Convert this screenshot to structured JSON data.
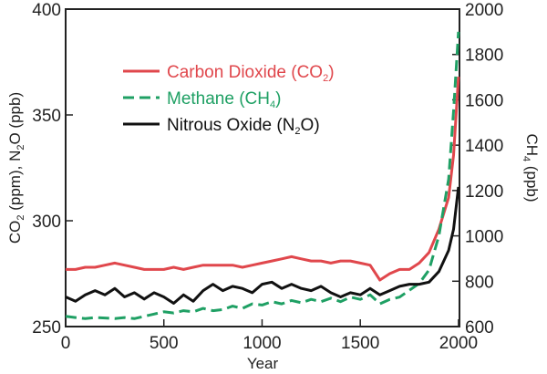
{
  "chart_data": {
    "type": "line",
    "title": "",
    "xlabel": "Year",
    "ylabel_left": {
      "prefix": "CO",
      "sub1": "2",
      "middle": " (ppm), N",
      "sub2": "2",
      "suffix": "O (ppb)"
    },
    "ylabel_right": {
      "prefix": "CH",
      "sub1": "4",
      "suffix": " (ppb)"
    },
    "xlim": [
      0,
      2005
    ],
    "ylim_left": [
      250,
      400
    ],
    "ylim_right": [
      600,
      2000
    ],
    "x_ticks": [
      0,
      500,
      1000,
      1500,
      2000
    ],
    "y_ticks_left": [
      250,
      300,
      350,
      400
    ],
    "y_ticks_right": [
      600,
      800,
      1000,
      1200,
      1400,
      1600,
      1800,
      2000
    ],
    "grid": false,
    "legend_placement": "top-left",
    "series": [
      {
        "key": "co2",
        "name_main": "Carbon Dioxide (CO",
        "name_sub": "2",
        "name_end": ")",
        "axis": "left",
        "color": "#e0474c",
        "dash": "solid",
        "points": [
          [
            0,
            277
          ],
          [
            50,
            277
          ],
          [
            100,
            278
          ],
          [
            150,
            278
          ],
          [
            200,
            279
          ],
          [
            250,
            280
          ],
          [
            300,
            279
          ],
          [
            350,
            278
          ],
          [
            400,
            277
          ],
          [
            450,
            277
          ],
          [
            500,
            277
          ],
          [
            550,
            278
          ],
          [
            600,
            277
          ],
          [
            650,
            278
          ],
          [
            700,
            279
          ],
          [
            750,
            279
          ],
          [
            800,
            279
          ],
          [
            850,
            279
          ],
          [
            900,
            278
          ],
          [
            950,
            279
          ],
          [
            1000,
            280
          ],
          [
            1050,
            281
          ],
          [
            1100,
            282
          ],
          [
            1150,
            283
          ],
          [
            1200,
            282
          ],
          [
            1250,
            281
          ],
          [
            1300,
            281
          ],
          [
            1350,
            280
          ],
          [
            1400,
            281
          ],
          [
            1450,
            281
          ],
          [
            1500,
            280
          ],
          [
            1550,
            279
          ],
          [
            1600,
            272
          ],
          [
            1650,
            275
          ],
          [
            1700,
            277
          ],
          [
            1750,
            277
          ],
          [
            1800,
            280
          ],
          [
            1850,
            285
          ],
          [
            1900,
            296
          ],
          [
            1950,
            311
          ],
          [
            1975,
            331
          ],
          [
            2000,
            368
          ]
        ]
      },
      {
        "key": "ch4",
        "name_main": "Methane (CH",
        "name_sub": "4",
        "name_end": ")",
        "axis": "right",
        "color": "#1fa064",
        "dash": "dashed",
        "points": [
          [
            0,
            645
          ],
          [
            50,
            640
          ],
          [
            100,
            635
          ],
          [
            150,
            640
          ],
          [
            200,
            638
          ],
          [
            250,
            635
          ],
          [
            300,
            640
          ],
          [
            350,
            635
          ],
          [
            400,
            645
          ],
          [
            450,
            655
          ],
          [
            500,
            665
          ],
          [
            550,
            660
          ],
          [
            600,
            670
          ],
          [
            650,
            665
          ],
          [
            700,
            680
          ],
          [
            750,
            670
          ],
          [
            800,
            675
          ],
          [
            850,
            690
          ],
          [
            900,
            680
          ],
          [
            950,
            700
          ],
          [
            1000,
            695
          ],
          [
            1050,
            710
          ],
          [
            1100,
            700
          ],
          [
            1150,
            715
          ],
          [
            1200,
            705
          ],
          [
            1250,
            720
          ],
          [
            1300,
            710
          ],
          [
            1350,
            725
          ],
          [
            1400,
            710
          ],
          [
            1450,
            730
          ],
          [
            1500,
            720
          ],
          [
            1550,
            740
          ],
          [
            1600,
            700
          ],
          [
            1650,
            720
          ],
          [
            1700,
            730
          ],
          [
            1750,
            760
          ],
          [
            1800,
            790
          ],
          [
            1850,
            850
          ],
          [
            1900,
            1000
          ],
          [
            1950,
            1250
          ],
          [
            1975,
            1550
          ],
          [
            2000,
            1900
          ]
        ]
      },
      {
        "key": "n2o",
        "name_main": "Nitrous Oxide (N",
        "name_sub": "2",
        "name_end": "O)",
        "axis": "left",
        "color": "#111111",
        "dash": "solid",
        "points": [
          [
            0,
            264
          ],
          [
            50,
            262
          ],
          [
            100,
            265
          ],
          [
            150,
            267
          ],
          [
            200,
            265
          ],
          [
            250,
            268
          ],
          [
            300,
            264
          ],
          [
            350,
            266
          ],
          [
            400,
            263
          ],
          [
            450,
            266
          ],
          [
            500,
            264
          ],
          [
            550,
            261
          ],
          [
            600,
            265
          ],
          [
            650,
            262
          ],
          [
            700,
            267
          ],
          [
            750,
            270
          ],
          [
            800,
            267
          ],
          [
            850,
            269
          ],
          [
            900,
            268
          ],
          [
            950,
            266
          ],
          [
            1000,
            270
          ],
          [
            1050,
            271
          ],
          [
            1100,
            268
          ],
          [
            1150,
            270
          ],
          [
            1200,
            268
          ],
          [
            1250,
            267
          ],
          [
            1300,
            269
          ],
          [
            1350,
            266
          ],
          [
            1400,
            264
          ],
          [
            1450,
            266
          ],
          [
            1500,
            265
          ],
          [
            1550,
            268
          ],
          [
            1600,
            265
          ],
          [
            1650,
            267
          ],
          [
            1700,
            269
          ],
          [
            1750,
            270
          ],
          [
            1800,
            270
          ],
          [
            1850,
            271
          ],
          [
            1900,
            276
          ],
          [
            1950,
            286
          ],
          [
            1975,
            296
          ],
          [
            2000,
            316
          ]
        ]
      }
    ]
  }
}
